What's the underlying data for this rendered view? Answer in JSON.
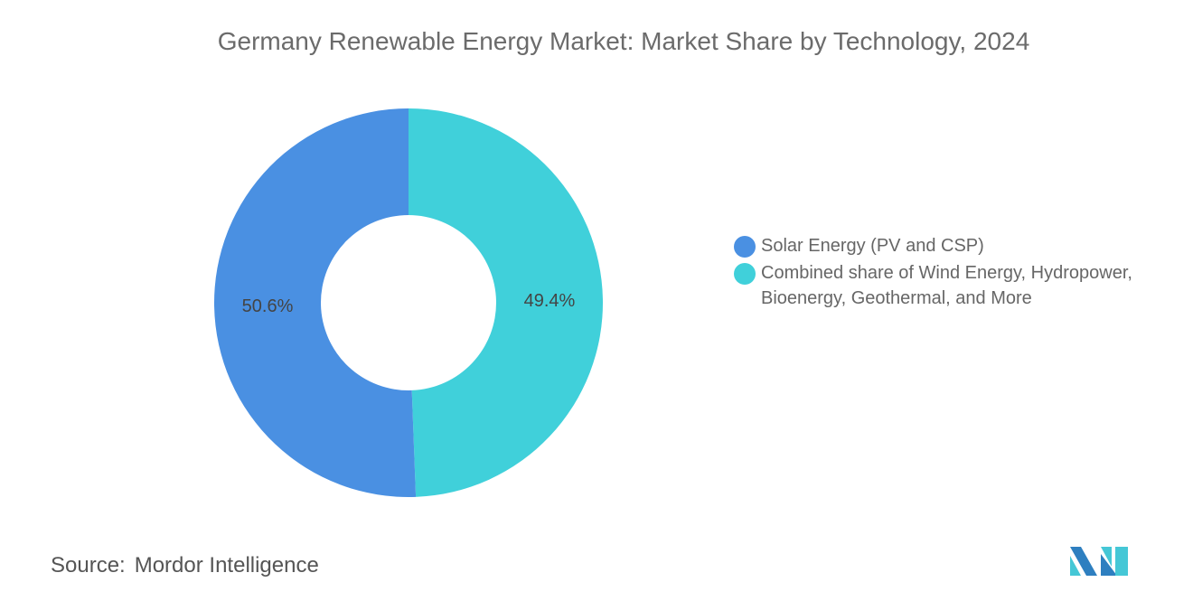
{
  "title": "Germany Renewable Energy Market: Market Share by Technology, 2024",
  "chart_data": {
    "type": "pie",
    "variant": "donut",
    "title": "Germany Renewable Energy Market: Market Share by Technology, 2024",
    "categories": [
      "Combined share of Wind Energy, Hydropower, Bioenergy, Geothermal, and More",
      "Solar Energy (PV and CSP)"
    ],
    "values": [
      49.4,
      50.6
    ],
    "labels": [
      "49.4%",
      "50.6%"
    ],
    "colors": [
      "#40D0DA",
      "#4A90E2"
    ],
    "legend_placement": "right"
  },
  "legend": [
    {
      "label": "Solar Energy (PV and CSP)",
      "color": "#4A90E2"
    },
    {
      "label": "Combined share of Wind Energy, Hydropower, Bioenergy, Geothermal, and More",
      "color": "#40D0DA"
    }
  ],
  "source": {
    "label": "Source:",
    "value": "Mordor Intelligence"
  },
  "logo": {
    "text": "Mordor Intelligence",
    "colors": [
      "#2E7FC0",
      "#45C7D6"
    ]
  }
}
